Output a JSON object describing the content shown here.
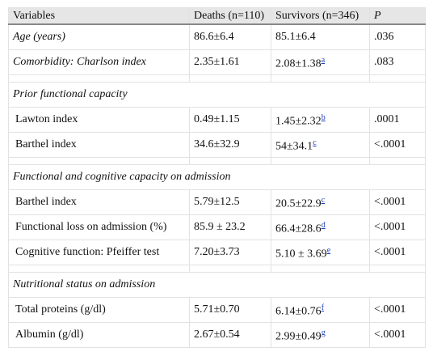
{
  "table": {
    "headers": {
      "variables": "Variables",
      "deaths": "Deaths (n=110)",
      "survivors": "Survivors (n=346)",
      "p": "P"
    },
    "rows": {
      "age": {
        "label": "Age (years)",
        "deaths": "86.6±6.4",
        "survivors": "85.1±6.4",
        "sup": "",
        "p": ".036"
      },
      "charlson": {
        "label": "Comorbidity: Charlson index",
        "deaths": "2.35±1.61",
        "survivors": "2.08±1.38",
        "sup": "a",
        "p": ".083"
      },
      "prior_section": {
        "label": "Prior functional capacity"
      },
      "lawton": {
        "label": "Lawton index",
        "deaths": "0.49±1.15",
        "survivors": "1.45±2.32",
        "sup": "b",
        "p": ".0001"
      },
      "barthel_prior": {
        "label": "Barthel index",
        "deaths": "34.6±32.9",
        "survivors": "54±34.1",
        "sup": "c",
        "p": "<.0001"
      },
      "admission_section": {
        "label": "Functional and cognitive capacity on admission"
      },
      "barthel_adm": {
        "label": "Barthel index",
        "deaths": "5.79±12.5",
        "survivors": "20.5±22.9",
        "sup": "c",
        "p": "<.0001"
      },
      "functional_loss": {
        "label": "Functional loss on admission (%)",
        "deaths": "85.9 ± 23.2",
        "survivors": "66.4±28.6",
        "sup": "d",
        "p": "<.0001"
      },
      "pfeiffer": {
        "label": "Cognitive function: Pfeiffer test",
        "deaths": "7.20±3.73",
        "survivors": "5.10 ± 3.69",
        "sup": "e",
        "p": "<.0001"
      },
      "nutrition_section": {
        "label": "Nutritional status on admission"
      },
      "proteins": {
        "label": "Total proteins (g/dl)",
        "deaths": "5.71±0.70",
        "survivors": "6.14±0.76",
        "sup": "f",
        "p": "<.0001"
      },
      "albumin": {
        "label": "Albumin (g/dl)",
        "deaths": "2.67±0.54",
        "survivors": "2.99±0.49",
        "sup": "g",
        "p": "<.0001"
      }
    }
  },
  "colors": {
    "header_bg": "#e6e6e6",
    "link": "#1a3fbf",
    "grid": "#e2e2e2"
  }
}
